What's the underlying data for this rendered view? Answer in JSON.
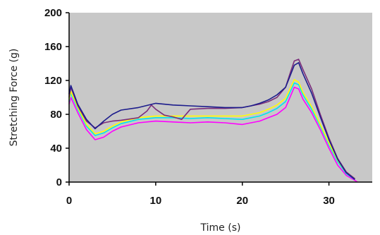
{
  "chart_data": {
    "type": "line",
    "title": "",
    "xlabel": "Time (s)",
    "ylabel": "Stretching Force (g)",
    "xlim": [
      0,
      35
    ],
    "ylim": [
      0,
      200
    ],
    "x_ticks": [
      0,
      10,
      20,
      30
    ],
    "y_ticks": [
      0,
      40,
      80,
      120,
      160,
      200
    ],
    "grid": false,
    "legend": "none",
    "colors": {
      "plot_background": "#c8c8c8",
      "page_background": "#ffffff",
      "axis": "#000000"
    },
    "series": [
      {
        "color": "#ff00ff",
        "x": [
          0,
          0.2,
          1,
          2,
          3,
          4,
          5,
          6,
          8,
          10,
          12,
          14,
          16,
          18,
          20,
          21,
          22,
          23,
          24,
          25,
          25.5,
          26,
          26.5,
          27,
          28,
          29,
          30,
          31,
          32,
          33,
          33.3
        ],
        "y": [
          92,
          100,
          82,
          62,
          50,
          53,
          60,
          65,
          70,
          72,
          71,
          70,
          71,
          70,
          68,
          70,
          72,
          76,
          80,
          88,
          100,
          112,
          110,
          98,
          82,
          62,
          40,
          20,
          8,
          2,
          0
        ]
      },
      {
        "color": "#00e5ee",
        "x": [
          0,
          0.2,
          1,
          2,
          3,
          4,
          5,
          6,
          8,
          10,
          12,
          14,
          16,
          18,
          20,
          21,
          22,
          23,
          24,
          25,
          25.5,
          26,
          26.5,
          27,
          28,
          29,
          30,
          31,
          32,
          33
        ],
        "y": [
          95,
          105,
          86,
          66,
          55,
          58,
          64,
          69,
          74,
          76,
          76,
          75,
          76,
          75,
          74,
          76,
          78,
          82,
          87,
          95,
          106,
          117,
          115,
          103,
          86,
          66,
          44,
          24,
          10,
          3
        ]
      },
      {
        "color": "#ffff00",
        "x": [
          0,
          0.2,
          1,
          2,
          3,
          4,
          5,
          6,
          8,
          10,
          12,
          14,
          16,
          18,
          20,
          21,
          22,
          23,
          24,
          25,
          25.5,
          26,
          26.5,
          27,
          28,
          29,
          30,
          31,
          32,
          33
        ],
        "y": [
          97,
          107,
          88,
          68,
          57,
          60,
          66,
          71,
          76,
          78,
          78,
          78,
          78,
          78,
          78,
          80,
          82,
          86,
          91,
          99,
          110,
          121,
          118,
          106,
          89,
          68,
          46,
          26,
          11,
          4
        ]
      },
      {
        "color": "#7b2d7b",
        "x": [
          0,
          0.2,
          1,
          2,
          3,
          4,
          5,
          6,
          8,
          9,
          9.5,
          10,
          11,
          12,
          13,
          14,
          16,
          18,
          20,
          21,
          22,
          23,
          24,
          25,
          25.5,
          26,
          26.5,
          27,
          28,
          29,
          30,
          31,
          32,
          33
        ],
        "y": [
          100,
          112,
          90,
          72,
          64,
          70,
          72,
          73,
          76,
          84,
          91,
          86,
          79,
          77,
          74,
          86,
          87,
          87,
          88,
          90,
          92,
          95,
          100,
          112,
          128,
          143,
          145,
          133,
          110,
          80,
          52,
          28,
          12,
          4
        ]
      },
      {
        "color": "#1c1c8c",
        "x": [
          0,
          0.2,
          1,
          2,
          3,
          4,
          5,
          6,
          8,
          10,
          12,
          14,
          16,
          18,
          20,
          21,
          22,
          23,
          24,
          25,
          25.5,
          26,
          26.5,
          27,
          28,
          29,
          30,
          31,
          32,
          33
        ],
        "y": [
          104,
          114,
          92,
          74,
          63,
          72,
          80,
          85,
          88,
          93,
          91,
          90,
          89,
          88,
          88,
          90,
          93,
          97,
          103,
          112,
          125,
          138,
          141,
          128,
          105,
          77,
          50,
          27,
          11,
          3
        ]
      }
    ]
  }
}
